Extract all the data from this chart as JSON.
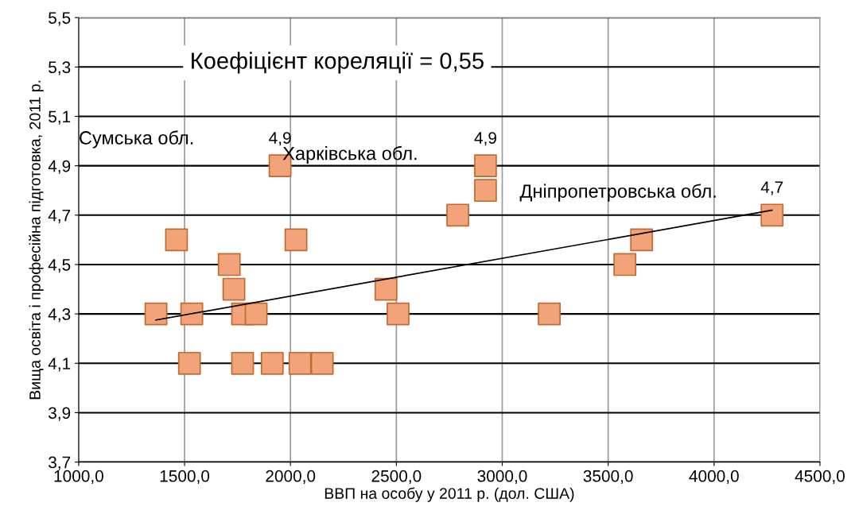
{
  "chart_data": {
    "type": "scatter",
    "xlabel": "ВВП на особу у 2011 р. (дол. США)",
    "ylabel": "Вища освіта і професійна підготовка, 2011 р.",
    "xlim": [
      1000,
      4500
    ],
    "xticks": [
      {
        "value": 1000,
        "label": "1000,0"
      },
      {
        "value": 1500,
        "label": "1500,0"
      },
      {
        "value": 2000,
        "label": "2000,0"
      },
      {
        "value": 2500,
        "label": "2500,0"
      },
      {
        "value": 3000,
        "label": "3000,0"
      },
      {
        "value": 3500,
        "label": "3500,0"
      },
      {
        "value": 4000,
        "label": "4000,0"
      },
      {
        "value": 4500,
        "label": "4500,0"
      }
    ],
    "ylim": [
      3.7,
      5.5
    ],
    "yticks": [
      {
        "value": 3.7,
        "label": "3,7"
      },
      {
        "value": 3.9,
        "label": "3,9"
      },
      {
        "value": 4.1,
        "label": "4,1"
      },
      {
        "value": 4.3,
        "label": "4,3"
      },
      {
        "value": 4.5,
        "label": "4,5"
      },
      {
        "value": 4.7,
        "label": "4,7"
      },
      {
        "value": 4.9,
        "label": "4,9"
      },
      {
        "value": 5.1,
        "label": "5,1"
      },
      {
        "value": 5.3,
        "label": "5,3"
      },
      {
        "value": 5.5,
        "label": "5,5"
      }
    ],
    "grid": true,
    "series": [
      {
        "marker": "square",
        "color": "#f2a37a",
        "x": [
          1365,
          1534,
          1462,
          1523,
          1711,
          1733,
          1774,
          1838,
          1774,
          1914,
          2045,
          2150,
          1951,
          2026,
          2451,
          2508,
          2790,
          2921,
          2921,
          3222,
          3579,
          3658,
          4274
        ],
        "values": [
          4.3,
          4.3,
          4.6,
          4.1,
          4.5,
          4.4,
          4.3,
          4.3,
          4.1,
          4.1,
          4.1,
          4.1,
          4.9,
          4.6,
          4.4,
          4.3,
          4.7,
          4.8,
          4.9,
          4.3,
          4.5,
          4.6,
          4.7
        ],
        "value_labels": [
          null,
          null,
          null,
          null,
          null,
          null,
          null,
          null,
          null,
          null,
          null,
          null,
          "4,9",
          null,
          null,
          null,
          null,
          null,
          "4,9",
          null,
          null,
          null,
          "4,7"
        ]
      },
      {
        "type": "line",
        "color": "#000000",
        "x": [
          1365,
          4274
        ],
        "values": [
          4.275,
          4.72
        ]
      }
    ],
    "annotations": [
      "Коефіцієнт кореляції = 0,55",
      "Сумська обл.",
      "Харківська обл.",
      "Дніпропетровська обл."
    ]
  }
}
